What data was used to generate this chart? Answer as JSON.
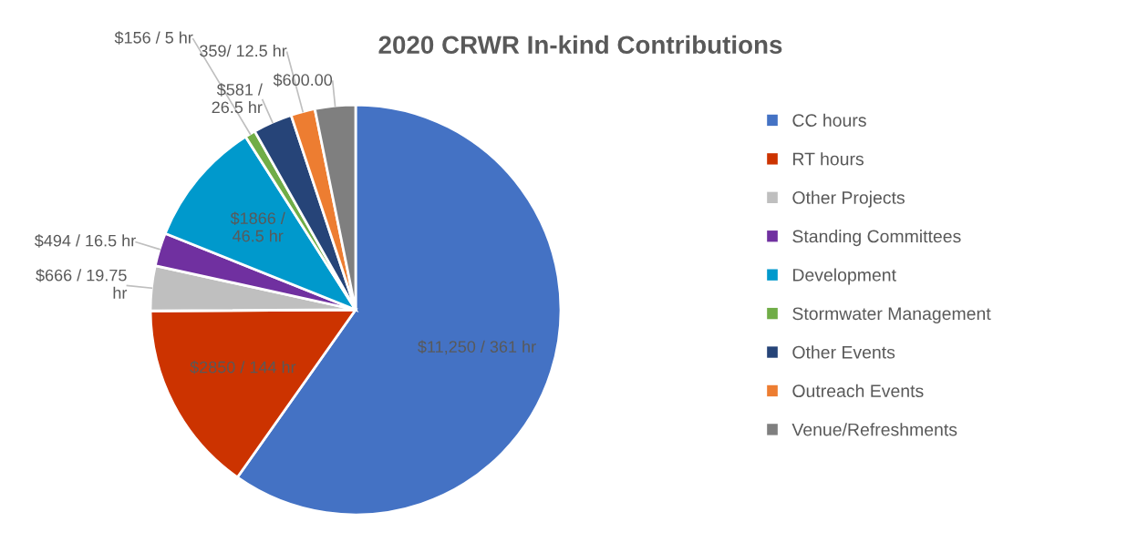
{
  "chart_data": {
    "type": "pie",
    "title": "2020 CRWR In-kind Contributions",
    "categories": [
      "CC hours",
      "RT hours",
      "Other Projects",
      "Standing Committees",
      "Development",
      "Stormwater Management",
      "Other Events",
      "Outreach Events",
      "Venue/Refreshments"
    ],
    "values": [
      11250,
      2850,
      666,
      494,
      1866,
      156,
      581,
      359,
      600
    ],
    "colors": [
      "#4472c4",
      "#cc3300",
      "#bfbfbf",
      "#7030a0",
      "#0099cc",
      "#70ad47",
      "#264478",
      "#ed7d31",
      "#7f7f7f"
    ],
    "value_labels": [
      "$11,250 / 361 hr",
      "$2850 / 144 hr",
      "$666 / 19.75\nhr",
      "$494 / 16.5 hr",
      "$1866 /\n46.5 hr",
      "$156 / 5 hr",
      "$581 /\n26.5 hr",
      "359/ 12.5 hr",
      "$600.00"
    ],
    "legend": "right"
  }
}
